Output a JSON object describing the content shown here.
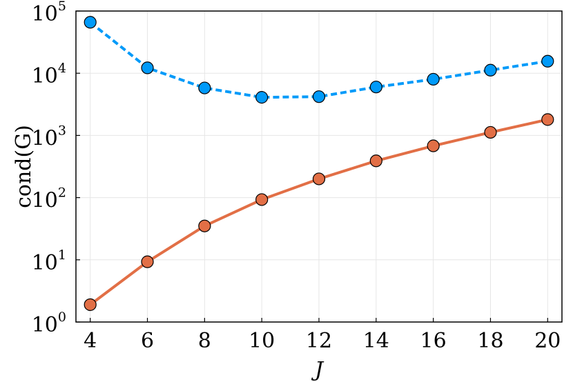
{
  "chart_data": {
    "type": "line",
    "xlabel": "J",
    "ylabel": "cond(G)",
    "y_scale": "log10",
    "xlim": [
      3.5,
      20.5
    ],
    "ylim": [
      1,
      100000
    ],
    "grid": true,
    "x_ticks": [
      4,
      6,
      8,
      10,
      12,
      14,
      16,
      18,
      20
    ],
    "x_tick_labels": [
      "4",
      "6",
      "8",
      "10",
      "12",
      "14",
      "16",
      "18",
      "20"
    ],
    "y_ticks": [
      1,
      10,
      100,
      1000,
      10000,
      100000
    ],
    "y_tick_labels": [
      {
        "base": "10",
        "exp": "0"
      },
      {
        "base": "10",
        "exp": "1"
      },
      {
        "base": "10",
        "exp": "2"
      },
      {
        "base": "10",
        "exp": "3"
      },
      {
        "base": "10",
        "exp": "4"
      },
      {
        "base": "10",
        "exp": "5"
      }
    ],
    "x": [
      4,
      6,
      8,
      10,
      12,
      14,
      16,
      18,
      20
    ],
    "series": [
      {
        "values": [
          66000,
          12200,
          5800,
          4100,
          4200,
          6000,
          8000,
          11200,
          15600
        ],
        "color": "#009AF9",
        "line_style": "dashed",
        "marker": "circle"
      },
      {
        "values": [
          1.9,
          9.3,
          35,
          93,
          200,
          390,
          680,
          1120,
          1800
        ],
        "color": "#E26F46",
        "line_style": "solid",
        "marker": "circle"
      }
    ]
  }
}
